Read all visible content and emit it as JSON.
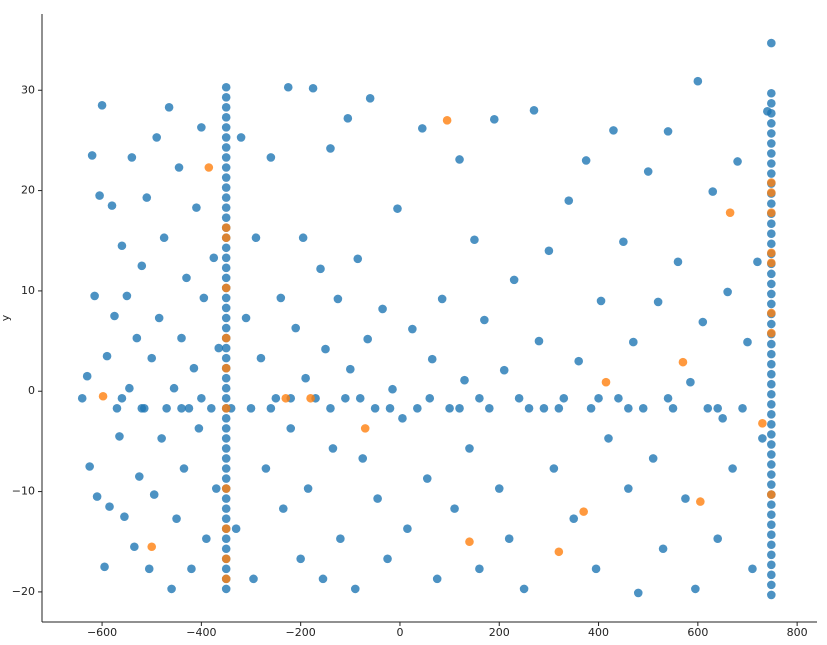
{
  "chart_data": {
    "type": "scatter",
    "ylabel": "y",
    "xlim": [
      -721,
      840
    ],
    "ylim": [
      -23,
      37.6
    ],
    "xticks": [
      {
        "value": -600,
        "label": "−600"
      },
      {
        "value": -400,
        "label": "−400"
      },
      {
        "value": -200,
        "label": "−200"
      },
      0,
      200,
      400,
      600,
      800
    ],
    "yticks": [
      {
        "value": -20,
        "label": "−20"
      },
      {
        "value": -10,
        "label": "−10"
      },
      0,
      10,
      20,
      30
    ],
    "series": [
      {
        "color": "#1f77b4",
        "x": [
          -630,
          -625,
          -620,
          -615,
          -610,
          -605,
          -600,
          -595,
          -590,
          -585,
          -580,
          -575,
          -570,
          -565,
          -560,
          -555,
          -550,
          -545,
          -540,
          -535,
          -530,
          -525,
          -520,
          -515,
          -510,
          -505,
          -500,
          -495,
          -490,
          -485,
          -480,
          -475,
          -470,
          -465,
          -460,
          -455,
          -450,
          -445,
          -440,
          -435,
          -430,
          -425,
          -420,
          -415,
          -410,
          -405,
          -400,
          -395,
          -390,
          -380,
          -375,
          -370,
          -365,
          -330,
          -320,
          -310,
          -300,
          -295,
          -290,
          -280,
          -270,
          -260,
          -250,
          -240,
          -235,
          -225,
          -220,
          -210,
          -200,
          -195,
          -190,
          -185,
          -175,
          -170,
          -160,
          -155,
          -150,
          -140,
          -135,
          -125,
          -120,
          -110,
          -105,
          -100,
          -90,
          -85,
          -75,
          -65,
          -60,
          -50,
          -45,
          -35,
          -25,
          -15,
          -5,
          5,
          15,
          25,
          35,
          45,
          55,
          65,
          75,
          85,
          100,
          110,
          120,
          130,
          140,
          150,
          160,
          170,
          180,
          190,
          200,
          210,
          220,
          230,
          240,
          250,
          270,
          280,
          290,
          300,
          310,
          330,
          340,
          350,
          360,
          375,
          385,
          395,
          405,
          420,
          430,
          440,
          450,
          460,
          470,
          480,
          490,
          500,
          510,
          520,
          530,
          540,
          550,
          560,
          575,
          585,
          595,
          600,
          610,
          620,
          630,
          640,
          650,
          660,
          670,
          680,
          690,
          700,
          710,
          720,
          730,
          740,
          -640,
          -560,
          -520,
          -440,
          -400,
          -340,
          -260,
          -220,
          -140,
          -80,
          -20,
          60,
          120,
          160,
          260,
          320,
          400,
          460,
          540,
          640,
          -350,
          -350,
          -350,
          -350,
          -350,
          -350,
          -350,
          -350,
          -350,
          -350,
          -350,
          -350,
          -350,
          -350,
          -350,
          -350,
          -350,
          -350,
          -350,
          -350,
          -350,
          -350,
          -350,
          -350,
          -350,
          -350,
          -350,
          -350,
          -350,
          -350,
          -350,
          -350,
          -350,
          -350,
          -350,
          -350,
          -350,
          -350,
          -350,
          -350,
          -350,
          -350,
          -350,
          -350,
          -350,
          -350,
          -350,
          -350,
          -350,
          -350,
          -350,
          748,
          748,
          748,
          748,
          748,
          748,
          748,
          748,
          748,
          748,
          748,
          748,
          748,
          748,
          748,
          748,
          748,
          748,
          748,
          748,
          748,
          748,
          748,
          748,
          748,
          748,
          748,
          748,
          748,
          748,
          748,
          748,
          748,
          748,
          748,
          748,
          748,
          748,
          748,
          748,
          748,
          748,
          748,
          748,
          748,
          748,
          748,
          748,
          748,
          748,
          748,
          748
        ],
        "values": [
          1.5,
          -7.5,
          23.5,
          9.5,
          -10.5,
          19.5,
          28.5,
          -17.5,
          3.5,
          -11.5,
          18.5,
          7.5,
          -1.7,
          -4.5,
          14.5,
          -12.5,
          9.5,
          0.3,
          23.3,
          -15.5,
          5.3,
          -8.5,
          12.5,
          -1.7,
          19.3,
          -17.7,
          3.3,
          -10.3,
          25.3,
          7.3,
          -4.7,
          15.3,
          -1.7,
          28.3,
          -19.7,
          0.3,
          -12.7,
          22.3,
          5.3,
          -7.7,
          11.3,
          -1.7,
          -17.7,
          2.3,
          18.3,
          -3.7,
          26.3,
          9.3,
          -14.7,
          -1.7,
          13.3,
          -9.7,
          4.3,
          -13.7,
          25.3,
          7.3,
          -1.7,
          -18.7,
          15.3,
          3.3,
          -7.7,
          23.3,
          -0.7,
          9.3,
          -11.7,
          30.3,
          -3.7,
          6.3,
          -16.7,
          15.3,
          1.3,
          -9.7,
          30.2,
          -0.7,
          12.2,
          -18.7,
          4.2,
          24.2,
          -5.7,
          9.2,
          -14.7,
          -0.7,
          27.2,
          2.2,
          -19.7,
          13.2,
          -6.7,
          5.2,
          29.2,
          -1.7,
          -10.7,
          8.2,
          -16.7,
          0.2,
          18.2,
          -2.7,
          -13.7,
          6.2,
          -1.7,
          26.2,
          -8.7,
          3.2,
          -18.7,
          9.2,
          -1.7,
          -11.7,
          23.1,
          1.1,
          -5.7,
          15.1,
          -17.7,
          7.1,
          -1.7,
          27.1,
          -9.7,
          2.1,
          -14.7,
          11.1,
          -0.7,
          -19.7,
          28.0,
          5.0,
          -1.7,
          14.0,
          -7.7,
          -0.7,
          19.0,
          -12.7,
          3.0,
          23.0,
          -1.7,
          -17.7,
          9.0,
          -4.7,
          26.0,
          -0.7,
          14.9,
          -9.7,
          4.9,
          -20.1,
          -1.7,
          21.9,
          -6.7,
          8.9,
          -15.7,
          25.9,
          -1.7,
          12.9,
          -10.7,
          0.9,
          -19.7,
          30.9,
          6.9,
          -1.7,
          19.9,
          -14.7,
          -2.7,
          9.9,
          -7.7,
          22.9,
          -1.7,
          4.9,
          -17.7,
          12.9,
          -4.7,
          27.9,
          -0.7,
          -0.7,
          -1.7,
          -1.7,
          -0.7,
          -1.7,
          -1.7,
          -0.7,
          -1.7,
          -0.7,
          -1.7,
          -0.7,
          -1.7,
          -0.7,
          -1.7,
          -1.7,
          -0.7,
          -1.7,
          -0.7,
          -1.7,
          30.3,
          29.3,
          28.3,
          27.3,
          26.3,
          25.3,
          24.3,
          23.3,
          22.3,
          21.3,
          20.3,
          19.3,
          18.3,
          17.3,
          16.3,
          15.3,
          14.3,
          13.3,
          12.3,
          11.3,
          10.3,
          9.3,
          8.3,
          7.3,
          6.3,
          5.3,
          4.3,
          3.3,
          2.3,
          1.3,
          0.3,
          -0.7,
          -1.7,
          -2.7,
          -3.7,
          -4.7,
          -5.7,
          -6.7,
          -7.7,
          -8.7,
          -9.7,
          -10.7,
          -11.7,
          -12.7,
          -13.7,
          -14.7,
          -15.7,
          -16.7,
          -17.7,
          -18.7,
          -19.7,
          34.7,
          29.7,
          28.7,
          27.7,
          26.7,
          25.7,
          24.7,
          23.7,
          22.7,
          21.7,
          20.7,
          19.7,
          18.7,
          17.7,
          16.7,
          15.7,
          14.7,
          13.7,
          12.7,
          11.7,
          10.7,
          9.7,
          8.7,
          7.7,
          6.7,
          5.7,
          4.7,
          3.7,
          2.7,
          1.7,
          0.7,
          -0.3,
          -1.3,
          -2.3,
          -3.3,
          -4.3,
          -5.3,
          -6.3,
          -7.3,
          -8.3,
          -9.3,
          -10.3,
          -11.3,
          -12.3,
          -13.3,
          -14.3,
          -15.3,
          -16.3,
          -17.3,
          -18.3,
          -19.3,
          -20.3
        ]
      },
      {
        "color": "#ff7f0e",
        "x": [
          -598,
          -500,
          -385,
          -350,
          -350,
          -350,
          -350,
          -350,
          -350,
          -350,
          -350,
          -350,
          -350,
          -230,
          -180,
          -70,
          95,
          140,
          320,
          370,
          415,
          570,
          605,
          665,
          730,
          748,
          748,
          748,
          748,
          748,
          748,
          748,
          748
        ],
        "values": [
          -0.5,
          -15.5,
          22.3,
          16.3,
          15.3,
          10.3,
          5.3,
          2.3,
          -1.7,
          -9.7,
          -13.7,
          -16.7,
          -18.7,
          -0.7,
          -0.7,
          -3.7,
          27,
          -15,
          -16,
          -12,
          0.9,
          2.9,
          -11,
          17.8,
          -3.2,
          20.8,
          19.8,
          17.8,
          13.8,
          12.8,
          7.8,
          5.8,
          -10.3
        ]
      }
    ]
  }
}
